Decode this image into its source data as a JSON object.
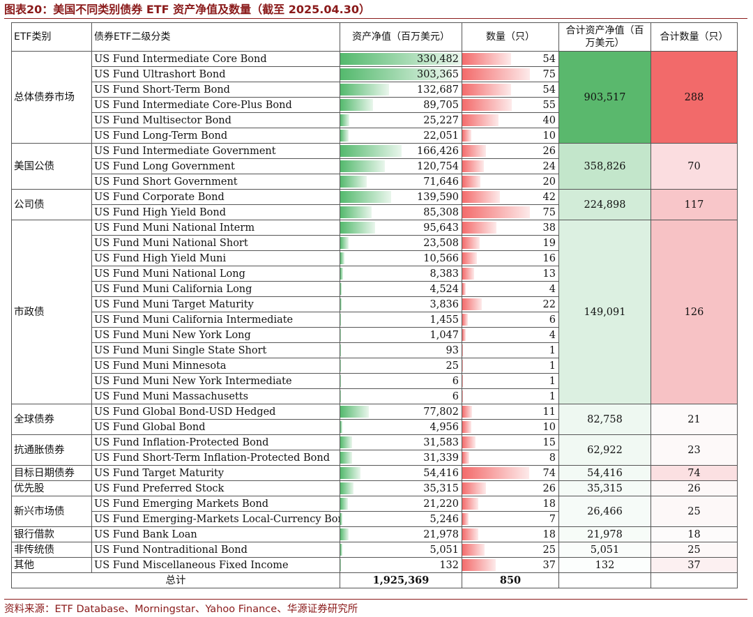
{
  "title": "图表20：美国不同类别债券 ETF 资产净值及数量（截至 2025.04.30）",
  "headers": {
    "category": "ETF类别",
    "subcategory": "债券ETF二级分类",
    "nav": "资产净值（百万美元）",
    "count": "数量（只）",
    "total_nav": "合计资产净值（百万美元）",
    "total_count": "合计数量（只）"
  },
  "scale": {
    "nav_max": 330482,
    "count_max": 75
  },
  "colors": {
    "nav_bar": "#54b96d",
    "count_bar": "#f36b6b"
  },
  "groups": [
    {
      "category": "总体债券市场",
      "total_nav": "903,517",
      "total_count": "288",
      "nav_bg": "#5ab86d",
      "count_bg": "#f26a6a",
      "rows": [
        {
          "name": "US Fund Intermediate Core Bond",
          "nav": 330482,
          "nav_label": "330,482",
          "count": 54
        },
        {
          "name": "US Fund Ultrashort Bond",
          "nav": 303365,
          "nav_label": "303,365",
          "count": 75
        },
        {
          "name": "US Fund Short-Term Bond",
          "nav": 132687,
          "nav_label": "132,687",
          "count": 54
        },
        {
          "name": "US Fund Intermediate Core-Plus Bond",
          "nav": 89705,
          "nav_label": "89,705",
          "count": 55
        },
        {
          "name": "US Fund Multisector Bond",
          "nav": 25227,
          "nav_label": "25,227",
          "count": 40
        },
        {
          "name": "US Fund Long-Term Bond",
          "nav": 22051,
          "nav_label": "22,051",
          "count": 10
        }
      ]
    },
    {
      "category": "美国公债",
      "total_nav": "358,826",
      "total_count": "70",
      "nav_bg": "#c3e6cb",
      "count_bg": "#fbdde0",
      "rows": [
        {
          "name": "US Fund Intermediate Government",
          "nav": 166426,
          "nav_label": "166,426",
          "count": 26
        },
        {
          "name": "US Fund Long Government",
          "nav": 120754,
          "nav_label": "120,754",
          "count": 24
        },
        {
          "name": "US Fund Short Government",
          "nav": 71646,
          "nav_label": "71,646",
          "count": 20
        }
      ]
    },
    {
      "category": "公司债",
      "total_nav": "224,898",
      "total_count": "117",
      "nav_bg": "#d2ecd8",
      "count_bg": "#f8c6c9",
      "rows": [
        {
          "name": "US Fund Corporate Bond",
          "nav": 139590,
          "nav_label": "139,590",
          "count": 42
        },
        {
          "name": "US Fund High Yield Bond",
          "nav": 85308,
          "nav_label": "85,308",
          "count": 75
        }
      ]
    },
    {
      "category": "市政债",
      "total_nav": "149,091",
      "total_count": "126",
      "nav_bg": "#dcf0e1",
      "count_bg": "#f7c2c5",
      "rows": [
        {
          "name": "US Fund Muni National Interm",
          "nav": 95643,
          "nav_label": "95,643",
          "count": 38
        },
        {
          "name": "US Fund Muni National Short",
          "nav": 23508,
          "nav_label": "23,508",
          "count": 19
        },
        {
          "name": "US Fund High Yield Muni",
          "nav": 10566,
          "nav_label": "10,566",
          "count": 16
        },
        {
          "name": "US Fund Muni National Long",
          "nav": 8383,
          "nav_label": "8,383",
          "count": 13
        },
        {
          "name": "US Fund Muni California Long",
          "nav": 4524,
          "nav_label": "4,524",
          "count": 4
        },
        {
          "name": "US Fund Muni Target Maturity",
          "nav": 3836,
          "nav_label": "3,836",
          "count": 22
        },
        {
          "name": "US Fund Muni California Intermediate",
          "nav": 1455,
          "nav_label": "1,455",
          "count": 6
        },
        {
          "name": "US Fund Muni New York Long",
          "nav": 1047,
          "nav_label": "1,047",
          "count": 4
        },
        {
          "name": "US Fund Muni Single State Short",
          "nav": 93,
          "nav_label": "93",
          "count": 1
        },
        {
          "name": "US Fund Muni Minnesota",
          "nav": 25,
          "nav_label": "25",
          "count": 1
        },
        {
          "name": "US Fund Muni New York Intermediate",
          "nav": 6,
          "nav_label": "6",
          "count": 1
        },
        {
          "name": "US Fund Muni Massachusetts",
          "nav": 6,
          "nav_label": "6",
          "count": 1
        }
      ]
    },
    {
      "category": "全球债券",
      "total_nav": "82,758",
      "total_count": "21",
      "nav_bg": "#eef8f1",
      "count_bg": "#fdfafa",
      "rows": [
        {
          "name": "US Fund Global Bond-USD Hedged",
          "nav": 77802,
          "nav_label": "77,802",
          "count": 11
        },
        {
          "name": "US Fund Global Bond",
          "nav": 4956,
          "nav_label": "4,956",
          "count": 10
        }
      ]
    },
    {
      "category": "抗通胀债券",
      "total_nav": "62,922",
      "total_count": "23",
      "nav_bg": "#f1f9f3",
      "count_bg": "#fdf9f9",
      "rows": [
        {
          "name": "US Fund Inflation-Protected Bond",
          "nav": 31583,
          "nav_label": "31,583",
          "count": 15
        },
        {
          "name": "US Fund Short-Term Inflation-Protected Bond",
          "nav": 31339,
          "nav_label": "31,339",
          "count": 8
        }
      ]
    },
    {
      "category": "目标日期债券",
      "total_nav": "54,416",
      "total_count": "74",
      "nav_bg": "#f3faf5",
      "count_bg": "#fbe0e2",
      "rows": [
        {
          "name": "US Fund Target Maturity",
          "nav": 54416,
          "nav_label": "54,416",
          "count": 74
        }
      ]
    },
    {
      "category": "优先股",
      "total_nav": "35,315",
      "total_count": "26",
      "nav_bg": "#f5fbf7",
      "count_bg": "#fdf8f8",
      "rows": [
        {
          "name": "US Fund Preferred Stock",
          "nav": 35315,
          "nav_label": "35,315",
          "count": 26
        }
      ]
    },
    {
      "category": "新兴市场债",
      "total_nav": "26,466",
      "total_count": "25",
      "nav_bg": "#f6fbf8",
      "count_bg": "#fdf8f8",
      "rows": [
        {
          "name": "US Fund Emerging Markets Bond",
          "nav": 21220,
          "nav_label": "21,220",
          "count": 18
        },
        {
          "name": "US Fund Emerging-Markets Local-Currency Bond",
          "nav": 5246,
          "nav_label": "5,246",
          "count": 7
        }
      ]
    },
    {
      "category": "银行借款",
      "total_nav": "21,978",
      "total_count": "18",
      "nav_bg": "#f7fcf8",
      "count_bg": "#fdfbfb",
      "rows": [
        {
          "name": "US Fund Bank Loan",
          "nav": 21978,
          "nav_label": "21,978",
          "count": 18
        }
      ]
    },
    {
      "category": "非传统债",
      "total_nav": "5,051",
      "total_count": "25",
      "nav_bg": "#fafdfb",
      "count_bg": "#fdf8f8",
      "rows": [
        {
          "name": "US Fund Nontraditional Bond",
          "nav": 5051,
          "nav_label": "5,051",
          "count": 25
        }
      ]
    },
    {
      "category": "其他",
      "total_nav": "132",
      "total_count": "37",
      "nav_bg": "#fcfefd",
      "count_bg": "#fcf0f1",
      "rows": [
        {
          "name": "US Fund Miscellaneous Fixed Income",
          "nav": 132,
          "nav_label": "132",
          "count": 37
        }
      ]
    }
  ],
  "total": {
    "label": "总计",
    "nav": "1,925,369",
    "count": "850"
  },
  "source": "资料来源：ETF Database、Morningstar、Yahoo Finance、华源证券研究所"
}
